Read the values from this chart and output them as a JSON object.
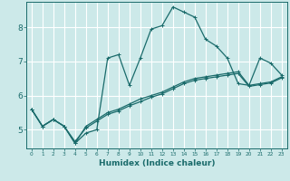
{
  "xlabel": "Humidex (Indice chaleur)",
  "bg_color": "#cce9e9",
  "grid_color": "#ffffff",
  "line_color": "#1a6b6b",
  "xlim": [
    -0.5,
    23.5
  ],
  "ylim": [
    4.45,
    8.75
  ],
  "xticks": [
    0,
    1,
    2,
    3,
    4,
    5,
    6,
    7,
    8,
    9,
    10,
    11,
    12,
    13,
    14,
    15,
    16,
    17,
    18,
    19,
    20,
    21,
    22,
    23
  ],
  "yticks": [
    5,
    6,
    7,
    8
  ],
  "series": [
    [
      5.6,
      5.1,
      5.3,
      5.1,
      4.6,
      4.9,
      5.0,
      7.1,
      7.2,
      6.3,
      7.1,
      7.95,
      8.05,
      8.6,
      8.45,
      8.3,
      7.65,
      7.45,
      7.1,
      6.35,
      6.3,
      7.1,
      6.95,
      6.6
    ],
    [
      5.6,
      5.1,
      5.3,
      5.1,
      4.6,
      5.1,
      5.3,
      5.5,
      5.6,
      5.75,
      5.9,
      6.0,
      6.1,
      6.25,
      6.4,
      6.5,
      6.55,
      6.6,
      6.65,
      6.7,
      6.3,
      6.35,
      6.4,
      6.55
    ],
    [
      5.6,
      5.1,
      5.3,
      5.1,
      4.65,
      5.05,
      5.25,
      5.45,
      5.55,
      5.7,
      5.82,
      5.95,
      6.05,
      6.2,
      6.35,
      6.45,
      6.5,
      6.55,
      6.6,
      6.65,
      6.27,
      6.32,
      6.37,
      6.52
    ]
  ],
  "marker": "+"
}
